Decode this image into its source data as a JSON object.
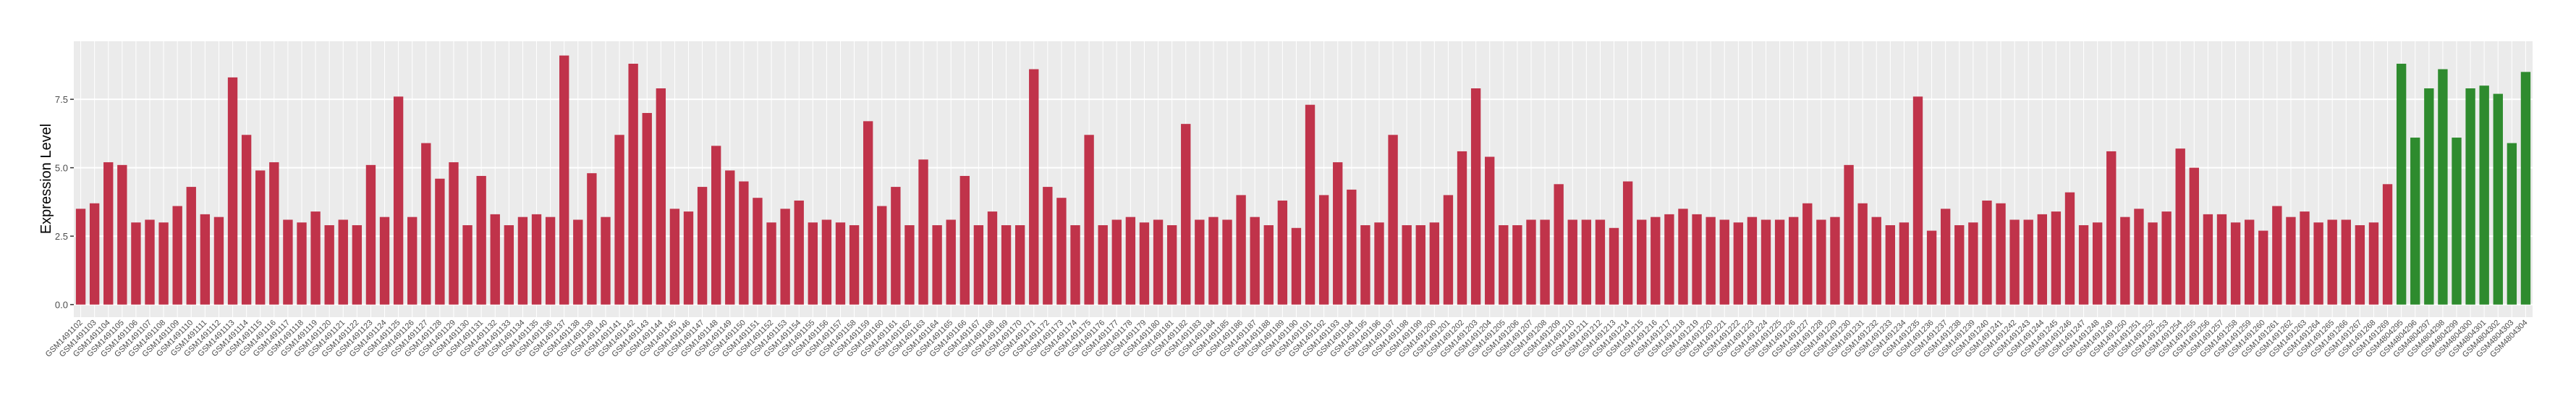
{
  "chart_data": {
    "type": "bar",
    "y_label": "Expression Level",
    "ylim": [
      -0.46,
      9.62
    ],
    "yticks": [
      {
        "value": 0,
        "label": "0.0"
      },
      {
        "value": 2.5,
        "label": "2.5"
      },
      {
        "value": 5,
        "label": "5.0"
      },
      {
        "value": 7.5,
        "label": "7.5"
      }
    ],
    "grid": true,
    "categories": [
      "GSM1491102",
      "GSM1491103",
      "GSM1491104",
      "GSM1491105",
      "GSM1491106",
      "GSM1491107",
      "GSM1491108",
      "GSM1491109",
      "GSM1491110",
      "GSM1491111",
      "GSM1491112",
      "GSM1491113",
      "GSM1491114",
      "GSM1491115",
      "GSM1491116",
      "GSM1491117",
      "GSM1491118",
      "GSM1491119",
      "GSM1491120",
      "GSM1491121",
      "GSM1491122",
      "GSM1491123",
      "GSM1491124",
      "GSM1491125",
      "GSM1491126",
      "GSM1491127",
      "GSM1491128",
      "GSM1491129",
      "GSM1491130",
      "GSM1491131",
      "GSM1491132",
      "GSM1491133",
      "GSM1491134",
      "GSM1491135",
      "GSM1491136",
      "GSM1491137",
      "GSM1491138",
      "GSM1491139",
      "GSM1491140",
      "GSM1491141",
      "GSM1491142",
      "GSM1491143",
      "GSM1491144",
      "GSM1491145",
      "GSM1491146",
      "GSM1491147",
      "GSM1491148",
      "GSM1491149",
      "GSM1491150",
      "GSM1491151",
      "GSM1491152",
      "GSM1491153",
      "GSM1491154",
      "GSM1491155",
      "GSM1491156",
      "GSM1491157",
      "GSM1491158",
      "GSM1491159",
      "GSM1491160",
      "GSM1491161",
      "GSM1491162",
      "GSM1491163",
      "GSM1491164",
      "GSM1491165",
      "GSM1491166",
      "GSM1491167",
      "GSM1491168",
      "GSM1491169",
      "GSM1491170",
      "GSM1491171",
      "GSM1491172",
      "GSM1491173",
      "GSM1491174",
      "GSM1491175",
      "GSM1491176",
      "GSM1491177",
      "GSM1491178",
      "GSM1491179",
      "GSM1491180",
      "GSM1491181",
      "GSM1491182",
      "GSM1491183",
      "GSM1491184",
      "GSM1491185",
      "GSM1491186",
      "GSM1491187",
      "GSM1491188",
      "GSM1491189",
      "GSM1491190",
      "GSM1491191",
      "GSM1491192",
      "GSM1491193",
      "GSM1491194",
      "GSM1491195",
      "GSM1491196",
      "GSM1491197",
      "GSM1491198",
      "GSM1491199",
      "GSM1491200",
      "GSM1491201",
      "GSM1491202",
      "GSM1491203",
      "GSM1491204",
      "GSM1491205",
      "GSM1491206",
      "GSM1491207",
      "GSM1491208",
      "GSM1491209",
      "GSM1491210",
      "GSM1491211",
      "GSM1491212",
      "GSM1491213",
      "GSM1491214",
      "GSM1491215",
      "GSM1491216",
      "GSM1491217",
      "GSM1491218",
      "GSM1491219",
      "GSM1491220",
      "GSM1491221",
      "GSM1491222",
      "GSM1491223",
      "GSM1491224",
      "GSM1491225",
      "GSM1491226",
      "GSM1491227",
      "GSM1491228",
      "GSM1491229",
      "GSM1491230",
      "GSM1491231",
      "GSM1491232",
      "GSM1491233",
      "GSM1491234",
      "GSM1491235",
      "GSM1491236",
      "GSM1491237",
      "GSM1491238",
      "GSM1491239",
      "GSM1491240",
      "GSM1491241",
      "GSM1491242",
      "GSM1491243",
      "GSM1491244",
      "GSM1491245",
      "GSM1491246",
      "GSM1491247",
      "GSM1491248",
      "GSM1491249",
      "GSM1491250",
      "GSM1491251",
      "GSM1491252",
      "GSM1491253",
      "GSM1491254",
      "GSM1491255",
      "GSM1491256",
      "GSM1491257",
      "GSM1491258",
      "GSM1491259",
      "GSM1491260",
      "GSM1491261",
      "GSM1491262",
      "GSM1491263",
      "GSM1491264",
      "GSM1491265",
      "GSM1491266",
      "GSM1491267",
      "GSM1491268",
      "GSM1491269",
      "GSM4804295",
      "GSM4804296",
      "GSM4804297",
      "GSM4804298",
      "GSM4804299",
      "GSM4804300",
      "GSM4804301",
      "GSM4804302",
      "GSM4804303",
      "GSM4804304"
    ],
    "values": [
      3.5,
      3.7,
      5.2,
      5.1,
      3.0,
      3.1,
      3.0,
      3.6,
      4.3,
      3.3,
      3.2,
      8.3,
      6.2,
      4.9,
      5.2,
      3.1,
      3.0,
      3.4,
      2.9,
      3.1,
      2.9,
      5.1,
      3.2,
      7.6,
      3.2,
      5.9,
      4.6,
      5.2,
      2.9,
      4.7,
      3.3,
      2.9,
      3.2,
      3.3,
      3.2,
      9.1,
      3.1,
      4.8,
      3.2,
      6.2,
      8.8,
      7.0,
      7.9,
      3.5,
      3.4,
      4.3,
      5.8,
      4.9,
      4.5,
      3.9,
      3.0,
      3.5,
      3.8,
      3.0,
      3.1,
      3.0,
      2.9,
      6.7,
      3.6,
      4.3,
      2.9,
      5.3,
      2.9,
      3.1,
      4.7,
      2.9,
      3.4,
      2.9,
      2.9,
      8.6,
      4.3,
      3.9,
      2.9,
      6.2,
      2.9,
      3.1,
      3.2,
      3.0,
      3.1,
      2.9,
      6.6,
      3.1,
      3.2,
      3.1,
      4.0,
      3.2,
      2.9,
      3.8,
      2.8,
      7.3,
      4.0,
      5.2,
      4.2,
      2.9,
      3.0,
      6.2,
      2.9,
      2.9,
      3.0,
      4.0,
      5.6,
      7.9,
      5.4,
      2.9,
      2.9,
      3.1,
      3.1,
      4.4,
      3.1,
      3.1,
      3.1,
      2.8,
      4.5,
      3.1,
      3.2,
      3.3,
      3.5,
      3.3,
      3.2,
      3.1,
      3.0,
      3.2,
      3.1,
      3.1,
      3.2,
      3.7,
      3.1,
      3.2,
      5.1,
      3.7,
      3.2,
      2.9,
      3.0,
      7.6,
      2.7,
      3.5,
      2.9,
      3.0,
      3.8,
      3.7,
      3.1,
      3.1,
      3.3,
      3.4,
      4.1,
      2.9,
      3.0,
      5.6,
      3.2,
      3.5,
      3.0,
      3.4,
      5.7,
      5.0,
      3.3,
      3.3,
      3.0,
      3.1,
      2.7,
      3.6,
      3.2,
      3.4,
      3.0,
      3.1,
      3.1,
      2.9,
      3.0,
      4.4,
      8.8,
      6.1,
      7.9,
      8.6,
      6.1,
      7.9,
      8.0,
      7.7,
      5.9,
      8.5
    ],
    "colors": [
      "#c0334a",
      "#c0334a",
      "#c0334a",
      "#c0334a",
      "#c0334a",
      "#c0334a",
      "#c0334a",
      "#c0334a",
      "#c0334a",
      "#c0334a",
      "#c0334a",
      "#c0334a",
      "#c0334a",
      "#c0334a",
      "#c0334a",
      "#c0334a",
      "#c0334a",
      "#c0334a",
      "#c0334a",
      "#c0334a",
      "#c0334a",
      "#c0334a",
      "#c0334a",
      "#c0334a",
      "#c0334a",
      "#c0334a",
      "#c0334a",
      "#c0334a",
      "#c0334a",
      "#c0334a",
      "#c0334a",
      "#c0334a",
      "#c0334a",
      "#c0334a",
      "#c0334a",
      "#c0334a",
      "#c0334a",
      "#c0334a",
      "#c0334a",
      "#c0334a",
      "#c0334a",
      "#c0334a",
      "#c0334a",
      "#c0334a",
      "#c0334a",
      "#c0334a",
      "#c0334a",
      "#c0334a",
      "#c0334a",
      "#c0334a",
      "#c0334a",
      "#c0334a",
      "#c0334a",
      "#c0334a",
      "#c0334a",
      "#c0334a",
      "#c0334a",
      "#c0334a",
      "#c0334a",
      "#c0334a",
      "#c0334a",
      "#c0334a",
      "#c0334a",
      "#c0334a",
      "#c0334a",
      "#c0334a",
      "#c0334a",
      "#c0334a",
      "#c0334a",
      "#c0334a",
      "#c0334a",
      "#c0334a",
      "#c0334a",
      "#c0334a",
      "#c0334a",
      "#c0334a",
      "#c0334a",
      "#c0334a",
      "#c0334a",
      "#c0334a",
      "#c0334a",
      "#c0334a",
      "#c0334a",
      "#c0334a",
      "#c0334a",
      "#c0334a",
      "#c0334a",
      "#c0334a",
      "#c0334a",
      "#c0334a",
      "#c0334a",
      "#c0334a",
      "#c0334a",
      "#c0334a",
      "#c0334a",
      "#c0334a",
      "#c0334a",
      "#c0334a",
      "#c0334a",
      "#c0334a",
      "#c0334a",
      "#c0334a",
      "#c0334a",
      "#c0334a",
      "#c0334a",
      "#c0334a",
      "#c0334a",
      "#c0334a",
      "#c0334a",
      "#c0334a",
      "#c0334a",
      "#c0334a",
      "#c0334a",
      "#c0334a",
      "#c0334a",
      "#c0334a",
      "#c0334a",
      "#c0334a",
      "#c0334a",
      "#c0334a",
      "#c0334a",
      "#c0334a",
      "#c0334a",
      "#c0334a",
      "#c0334a",
      "#c0334a",
      "#c0334a",
      "#c0334a",
      "#c0334a",
      "#c0334a",
      "#c0334a",
      "#c0334a",
      "#c0334a",
      "#c0334a",
      "#c0334a",
      "#c0334a",
      "#c0334a",
      "#c0334a",
      "#c0334a",
      "#c0334a",
      "#c0334a",
      "#c0334a",
      "#c0334a",
      "#c0334a",
      "#c0334a",
      "#c0334a",
      "#c0334a",
      "#c0334a",
      "#c0334a",
      "#c0334a",
      "#c0334a",
      "#c0334a",
      "#c0334a",
      "#c0334a",
      "#c0334a",
      "#c0334a",
      "#c0334a",
      "#c0334a",
      "#c0334a",
      "#c0334a",
      "#c0334a",
      "#c0334a",
      "#c0334a",
      "#c0334a",
      "#c0334a",
      "#c0334a",
      "#c0334a",
      "#c0334a",
      "#2e8b2e",
      "#2e8b2e",
      "#2e8b2e",
      "#2e8b2e",
      "#2e8b2e",
      "#2e8b2e",
      "#2e8b2e",
      "#2e8b2e",
      "#2e8b2e",
      "#2e8b2e"
    ]
  }
}
